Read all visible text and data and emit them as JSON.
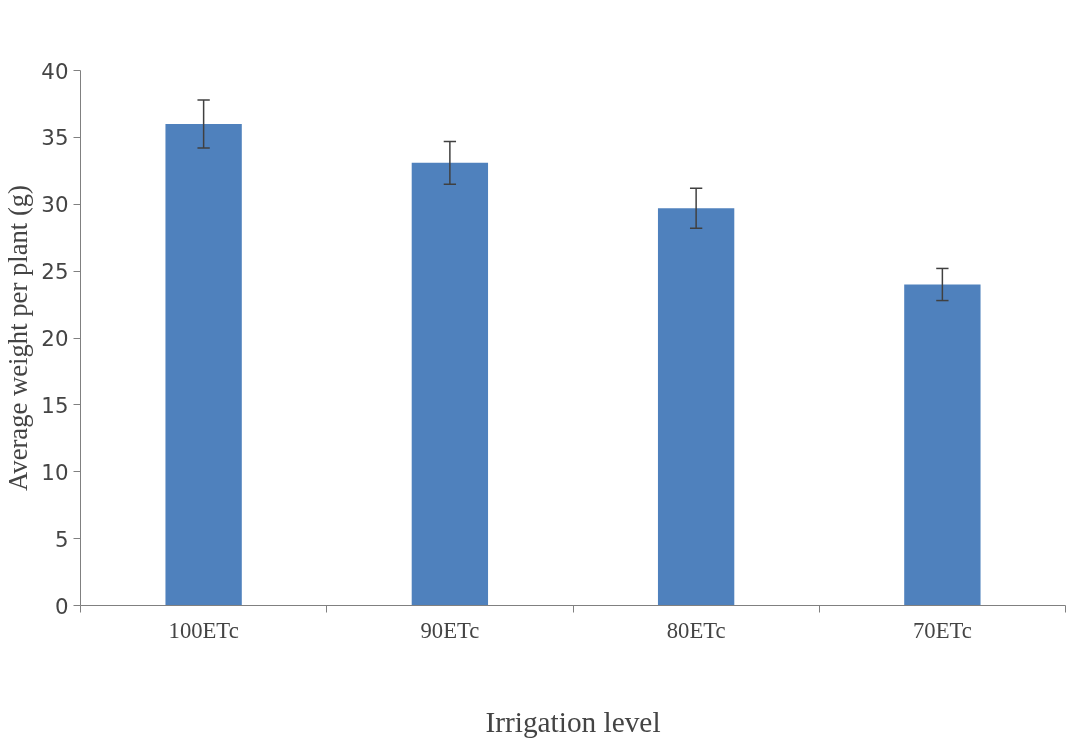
{
  "chart_data": {
    "type": "bar",
    "xlabel": "Irrigation level",
    "ylabel": "Average weight per plant (g)",
    "categories": [
      "100ETc",
      "90ETc",
      "80ETc",
      "70ETc"
    ],
    "values": [
      36.0,
      33.1,
      29.7,
      24.0
    ],
    "errors": [
      1.8,
      1.6,
      1.5,
      1.2
    ],
    "color": "#4f81bd",
    "ylim": [
      0,
      40
    ],
    "yticks": [
      0,
      5,
      10,
      15,
      20,
      25,
      30,
      35,
      40
    ],
    "grid": false
  }
}
